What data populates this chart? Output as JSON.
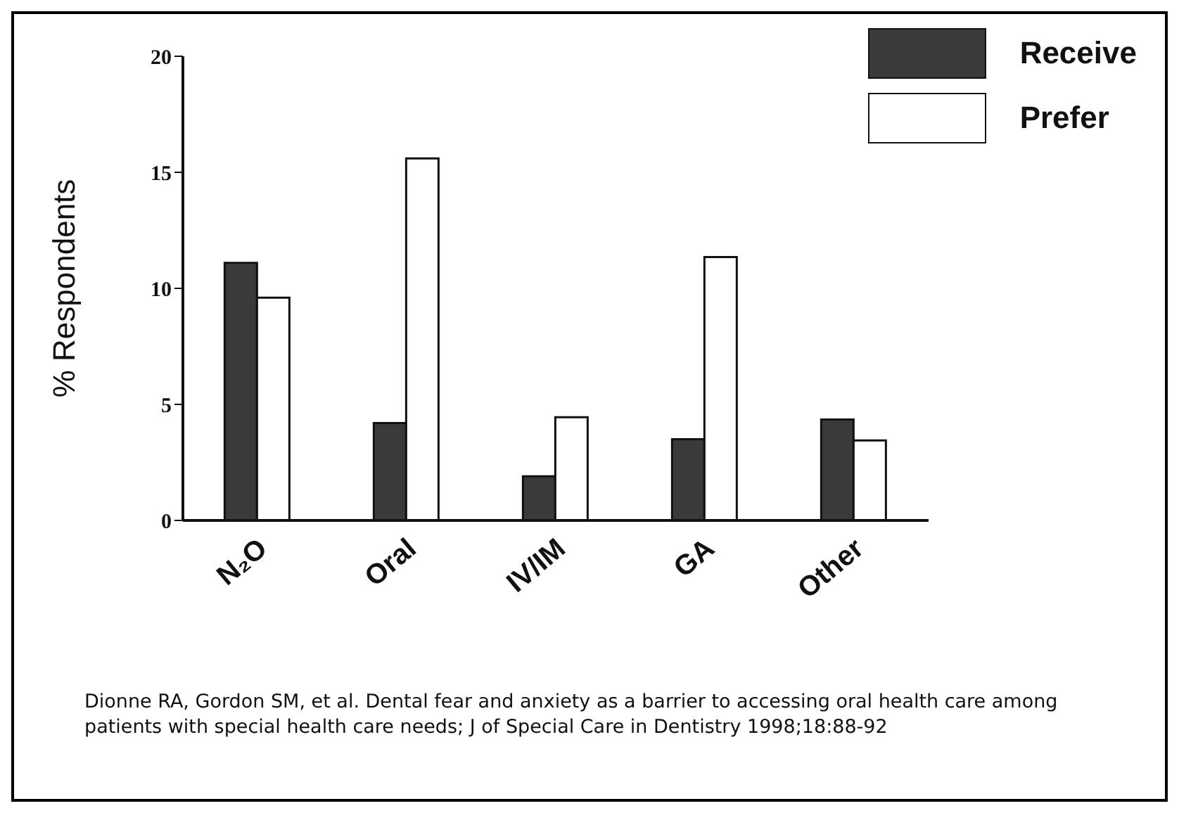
{
  "chart_data": {
    "type": "bar",
    "ylabel": "% Respondents",
    "categories": [
      "N₂O",
      "Oral",
      "IV/IM",
      "GA",
      "Other"
    ],
    "series": [
      {
        "name": "Receive",
        "color": "#3a3a3a",
        "values": [
          11.1,
          4.2,
          1.9,
          3.5,
          4.35
        ]
      },
      {
        "name": "Prefer",
        "color": "#ffffff",
        "values": [
          9.6,
          15.6,
          4.45,
          11.35,
          3.45
        ]
      }
    ],
    "ylim": [
      0,
      20
    ],
    "yticks": [
      0,
      5,
      10,
      15,
      20
    ],
    "grid": false,
    "legend": "top right",
    "annotations": [
      "Dionne RA, Gordon SM, et al. Dental fear and anxiety as a barrier to accessing oral health care among patients with special health care needs; J of Special Care in Dentistry 1998;18:88-92"
    ]
  }
}
